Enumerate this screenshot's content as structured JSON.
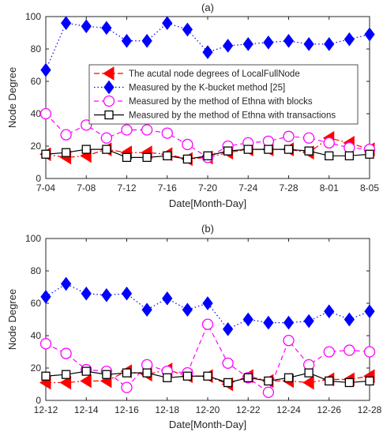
{
  "chart_data": [
    {
      "type": "line",
      "title": "(a)",
      "xlabel": "Date[Month-Day]",
      "ylabel": "Node Degree",
      "ylim": [
        0,
        100
      ],
      "yticks": [
        0,
        20,
        40,
        60,
        80,
        100
      ],
      "xlim": [
        0,
        16
      ],
      "xtick_positions": [
        0,
        2,
        4,
        6,
        8,
        10,
        12,
        14,
        16
      ],
      "xtick_labels": [
        "7-04",
        "7-08",
        "7-12",
        "7-16",
        "7-20",
        "7-24",
        "7-28",
        "8-01",
        "8-05"
      ],
      "legend_position": "inside-top-right",
      "x": [
        0,
        1,
        2,
        3,
        4,
        5,
        6,
        7,
        8,
        9,
        10,
        11,
        12,
        13,
        14,
        15,
        16
      ],
      "series": [
        {
          "name": "The acutal node degrees of LocalFullNode",
          "color": "#ff0000",
          "marker": "triangle-left",
          "line": "dashdot",
          "values": [
            15,
            13,
            14,
            18,
            16,
            16,
            15,
            12,
            13,
            16,
            18,
            18,
            18,
            16,
            25,
            22,
            18
          ]
        },
        {
          "name": "Measured by the K-bucket method [25]",
          "color": "#0000ff",
          "marker": "diamond",
          "line": "dotted",
          "values": [
            67,
            96,
            94,
            93,
            85,
            85,
            96,
            92,
            78,
            82,
            83,
            84,
            85,
            83,
            83,
            86,
            89
          ]
        },
        {
          "name": "Measured by the method of Ethna with blocks",
          "color": "#ff00ff",
          "marker": "circle",
          "line": "dashed",
          "values": [
            40,
            27,
            33,
            25,
            30,
            30,
            28,
            21,
            13,
            20,
            22,
            23,
            26,
            25,
            22,
            19,
            18
          ]
        },
        {
          "name": "Measured by the method of Ethna with transactions",
          "color": "#000000",
          "marker": "square",
          "line": "solid",
          "values": [
            15,
            16,
            18,
            18,
            13,
            13,
            14,
            12,
            14,
            17,
            18,
            18,
            18,
            17,
            14,
            14,
            15
          ]
        }
      ]
    },
    {
      "type": "line",
      "title": "(b)",
      "xlabel": "Date[Month-Day]",
      "ylabel": "Node Degree",
      "ylim": [
        0,
        100
      ],
      "yticks": [
        0,
        20,
        40,
        60,
        80,
        100
      ],
      "xlim": [
        0,
        16
      ],
      "xtick_positions": [
        0,
        2,
        4,
        6,
        8,
        10,
        12,
        14,
        16
      ],
      "xtick_labels": [
        "12-12",
        "12-14",
        "12-16",
        "12-18",
        "12-20",
        "12-22",
        "12-24",
        "12-26",
        "12-28"
      ],
      "x": [
        0,
        1,
        2,
        3,
        4,
        5,
        6,
        7,
        8,
        9,
        10,
        11,
        12,
        13,
        14,
        15,
        16
      ],
      "series": [
        {
          "name": "The acutal node degrees of LocalFullNode",
          "color": "#ff0000",
          "marker": "triangle-left",
          "line": "dashdot",
          "values": [
            11,
            11,
            12,
            12,
            18,
            16,
            19,
            15,
            15,
            10,
            15,
            12,
            12,
            11,
            13,
            13,
            15
          ]
        },
        {
          "name": "Measured by the K-bucket method [25]",
          "color": "#0000ff",
          "marker": "diamond",
          "line": "dotted",
          "values": [
            64,
            72,
            66,
            65,
            66,
            56,
            63,
            56,
            60,
            44,
            50,
            48,
            48,
            49,
            55,
            50,
            55
          ]
        },
        {
          "name": "Measured by the method of Ethna with blocks",
          "color": "#ff00ff",
          "marker": "circle",
          "line": "dashed",
          "values": [
            35,
            29,
            19,
            18,
            8,
            22,
            18,
            17,
            47,
            23,
            14,
            5,
            37,
            22,
            30,
            31,
            30
          ]
        },
        {
          "name": "Measured by the method of Ethna with transactions",
          "color": "#000000",
          "marker": "square",
          "line": "solid",
          "values": [
            15,
            16,
            18,
            16,
            17,
            17,
            14,
            15,
            15,
            11,
            14,
            12,
            14,
            17,
            12,
            11,
            12
          ]
        }
      ]
    }
  ]
}
